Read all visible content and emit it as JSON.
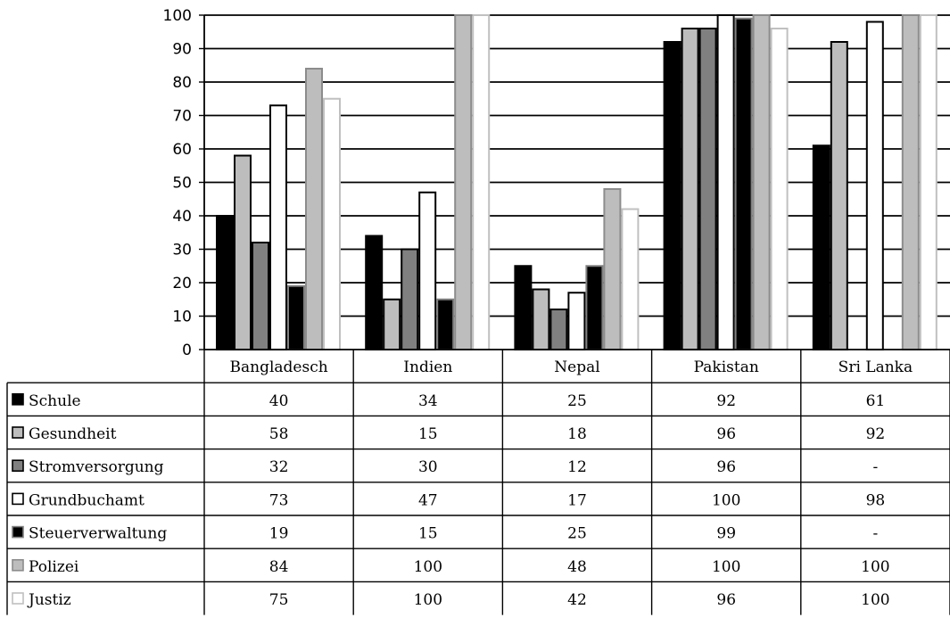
{
  "chart_data": {
    "type": "bar",
    "categories": [
      "Bangladesch",
      "Indien",
      "Nepal",
      "Pakistan",
      "Sri Lanka"
    ],
    "ylim": [
      0,
      100
    ],
    "yticks": [
      0,
      10,
      20,
      30,
      40,
      50,
      60,
      70,
      80,
      90,
      100
    ],
    "grid": true,
    "legend": "data-table-below",
    "series": [
      {
        "name": "Schule",
        "fill": "#000000",
        "stroke": "#000000",
        "values": [
          40,
          34,
          25,
          92,
          61
        ],
        "display": [
          "40",
          "34",
          "25",
          "92",
          "61"
        ]
      },
      {
        "name": "Gesundheit",
        "fill": "#bdbdbd",
        "stroke": "#000000",
        "values": [
          58,
          15,
          18,
          96,
          92
        ],
        "display": [
          "58",
          "15",
          "18",
          "96",
          "92"
        ]
      },
      {
        "name": "Stromversorgung",
        "fill": "#808080",
        "stroke": "#000000",
        "values": [
          32,
          30,
          12,
          96,
          null
        ],
        "display": [
          "32",
          "30",
          "12",
          "96",
          "-"
        ]
      },
      {
        "name": "Grundbuchamt",
        "fill": "#ffffff",
        "stroke": "#000000",
        "values": [
          73,
          47,
          17,
          100,
          98
        ],
        "display": [
          "73",
          "47",
          "17",
          "100",
          "98"
        ]
      },
      {
        "name": "Steuerverwaltung",
        "fill": "#000000",
        "stroke": "#808080",
        "values": [
          19,
          15,
          25,
          99,
          null
        ],
        "display": [
          "19",
          "15",
          "25",
          "99",
          "-"
        ]
      },
      {
        "name": "Polizei",
        "fill": "#bdbdbd",
        "stroke": "#8c8c8c",
        "values": [
          84,
          100,
          48,
          100,
          100
        ],
        "display": [
          "84",
          "100",
          "48",
          "100",
          "100"
        ]
      },
      {
        "name": "Justiz",
        "fill": "#ffffff",
        "stroke": "#c0c0c0",
        "values": [
          75,
          100,
          42,
          96,
          100
        ],
        "display": [
          "75",
          "100",
          "42",
          "96",
          "100"
        ]
      }
    ]
  }
}
